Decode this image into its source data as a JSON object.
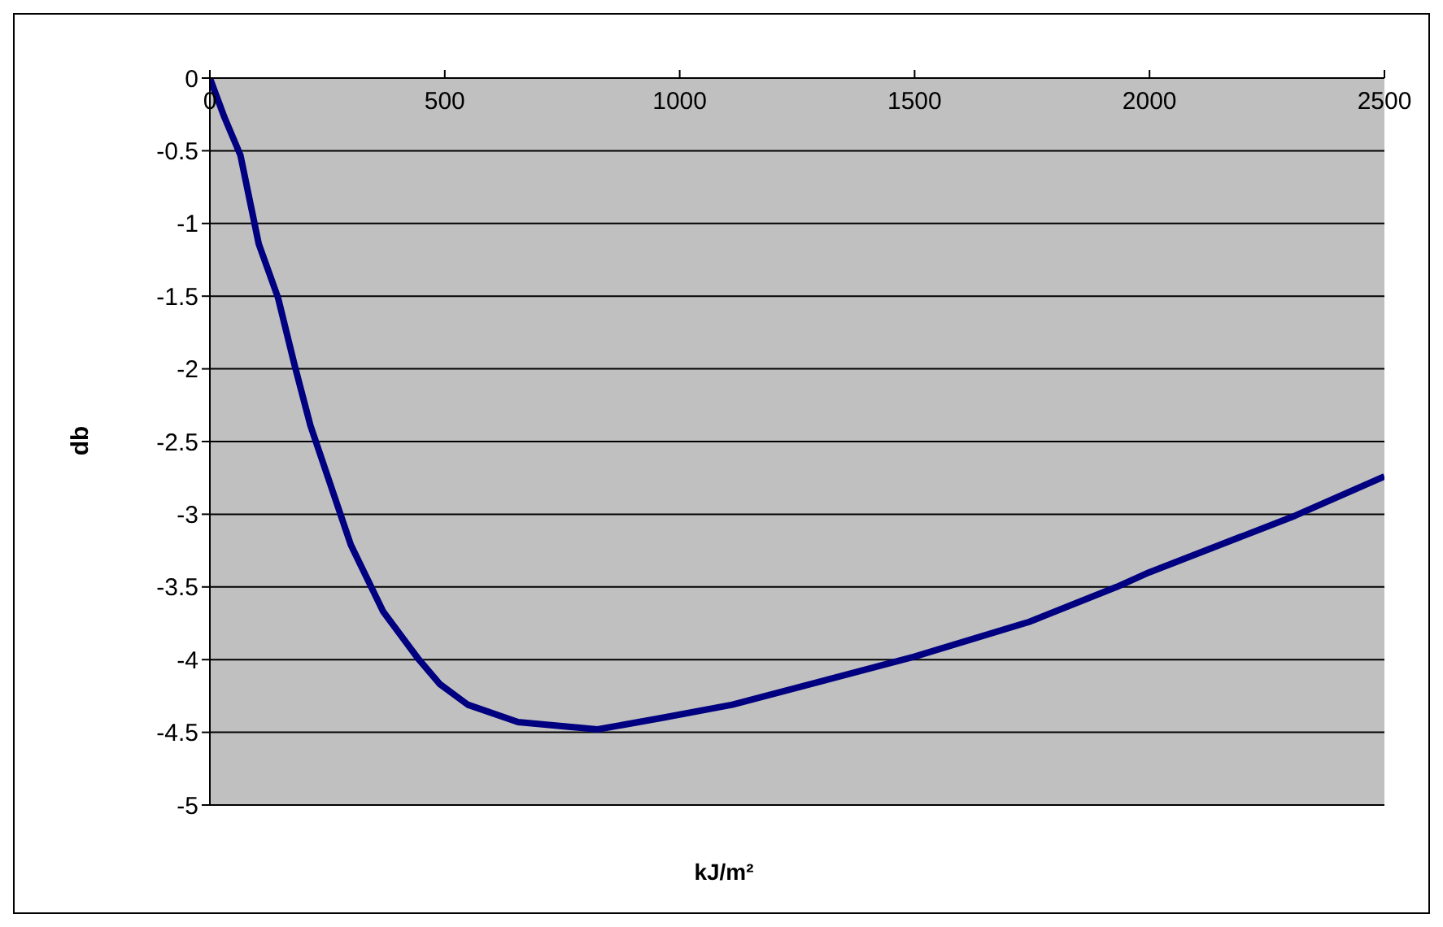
{
  "chart_data": {
    "type": "line",
    "xlabel": "kJ/m²",
    "ylabel": "db",
    "xlim": [
      0,
      2500
    ],
    "xticks": [
      0,
      500,
      1000,
      1500,
      2000,
      2500
    ],
    "ylim": [
      -5,
      0
    ],
    "yticks": [
      -5,
      -4.5,
      -4,
      -3.5,
      -3,
      -2.5,
      -2,
      -1.5,
      -1,
      -0.5,
      0
    ],
    "grid": "y",
    "legend": false,
    "marker": "none",
    "line_style": "solid",
    "x": [
      0,
      31,
      65,
      104,
      145,
      180,
      214,
      300,
      369,
      445,
      490,
      549,
      656,
      825,
      963,
      1112,
      1499,
      1744,
      1930,
      1999,
      2310,
      2500
    ],
    "series": [
      {
        "color": "#000080",
        "values": [
          0,
          -0.27,
          -0.53,
          -1.14,
          -1.51,
          -1.97,
          -2.39,
          -3.21,
          -3.67,
          -4.0,
          -4.17,
          -4.31,
          -4.43,
          -4.48,
          -4.4,
          -4.31,
          -3.98,
          -3.74,
          -3.5,
          -3.4,
          -3.01,
          -2.74
        ]
      }
    ]
  }
}
